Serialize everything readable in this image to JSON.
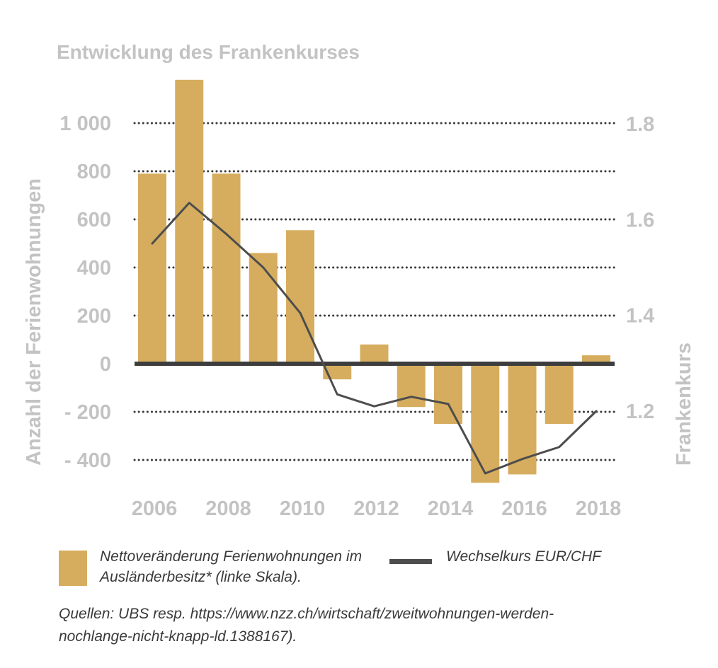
{
  "chart_data": {
    "type": "bar",
    "title": "Entwicklung des Frankenkurses",
    "ylabel": "Anzahl der Ferienwohnungen",
    "ylabel_right": "Frankenkurs",
    "x": [
      2006,
      2007,
      2008,
      2009,
      2010,
      2011,
      2012,
      2013,
      2014,
      2015,
      2016,
      2017,
      2018
    ],
    "x_tick_labels": [
      "2006",
      "2008",
      "2010",
      "2012",
      "2014",
      "2016",
      "2018"
    ],
    "x_tick_values": [
      2006,
      2008,
      2010,
      2012,
      2014,
      2016,
      2018
    ],
    "ylim": [
      -500,
      1200
    ],
    "y_ticks": [
      1000,
      800,
      600,
      400,
      200,
      0,
      -200,
      -400
    ],
    "y_tick_labels": [
      "1 000",
      "800",
      "600",
      "400",
      "200",
      "0",
      "- 200",
      "- 400"
    ],
    "y2lim": [
      1.048,
      1.924
    ],
    "y2_ticks": [
      1.8,
      1.6,
      1.4,
      1.2
    ],
    "y2_tick_labels": [
      "1.8",
      "1.6",
      "1.4",
      "1.2"
    ],
    "grid": true,
    "series": [
      {
        "name": "Nettoveränderung Ferienwohnungen im Ausländerbesitz* (linke Skala).",
        "type": "bar",
        "axis": "left",
        "color": "#d6ad5e",
        "values": [
          790,
          1180,
          790,
          460,
          555,
          -65,
          80,
          -180,
          -250,
          -495,
          -460,
          -250,
          35
        ]
      },
      {
        "name": "Wechselkurs EUR/CHF",
        "type": "line",
        "axis": "right",
        "color": "#4d4d4d",
        "values": [
          1.55,
          1.635,
          1.57,
          1.5,
          1.405,
          1.235,
          1.21,
          1.23,
          1.215,
          1.07,
          1.1,
          1.125,
          1.2
        ]
      }
    ]
  },
  "legend": {
    "bar_label": "Nettoveränderung Ferienwohnungen im Ausländerbesitz* (linke Skala).",
    "line_label": "Wechselkurs EUR/CHF"
  },
  "source_text": "Quellen: UBS resp. https://www.nzz.ch/wirtschaft/zweitwohnungen-werden-nochlange-nicht-knapp-ld.1388167)."
}
